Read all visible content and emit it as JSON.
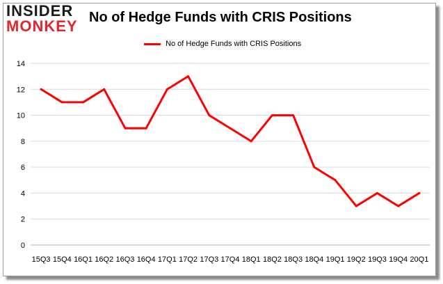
{
  "logo": {
    "line1": "INSIDER",
    "line2": "MONKEY"
  },
  "chart_data": {
    "type": "line",
    "title": "No of Hedge Funds with CRIS Positions",
    "xlabel": "",
    "ylabel": "",
    "categories": [
      "15Q3",
      "15Q4",
      "16Q1",
      "16Q2",
      "16Q3",
      "16Q4",
      "17Q1",
      "17Q2",
      "17Q3",
      "17Q4",
      "18Q1",
      "18Q2",
      "18Q3",
      "18Q4",
      "19Q1",
      "19Q2",
      "19Q3",
      "19Q4",
      "20Q1"
    ],
    "series": [
      {
        "name": "No of Hedge Funds with CRIS Positions",
        "color": "#ff0000",
        "values": [
          12,
          11,
          11,
          12,
          9,
          9,
          12,
          13,
          10,
          9,
          8,
          10,
          10,
          6,
          5,
          3,
          4,
          3,
          4
        ]
      }
    ],
    "ylim": [
      0,
      14
    ],
    "yticks": [
      0,
      2,
      4,
      6,
      8,
      10,
      12,
      14
    ],
    "grid": true,
    "legend": "top"
  }
}
